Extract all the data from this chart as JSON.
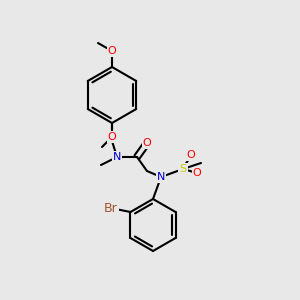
{
  "bg_color": "#e8e8e8",
  "bond_color": "#000000",
  "bond_lw": 1.5,
  "atom_colors": {
    "N": "#0000CC",
    "O": "#FF0000",
    "S": "#CCCC00",
    "Br": "#A0522D",
    "C": "#000000"
  },
  "font_size": 8,
  "font_size_small": 7
}
